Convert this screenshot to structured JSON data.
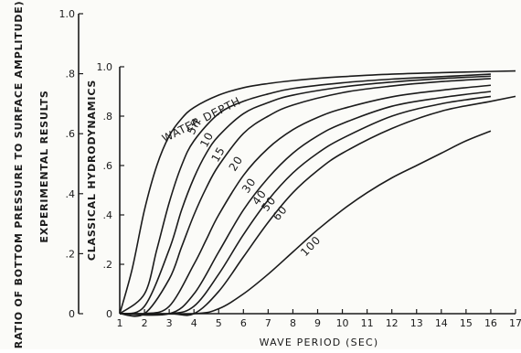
{
  "chart_data": {
    "type": "line",
    "title": "",
    "xlabel": "WAVE PERIOD (SEC)",
    "ylabel": "(RATIO OF BOTTOM PRESSURE TO SURFACE AMPLITUDE) P/A",
    "ylabel_outer_2": "EXPERIMENTAL RESULTS",
    "ylabel_inner": "CLASSICAL HYDRODYNAMICS",
    "xlim": [
      1,
      17
    ],
    "ylim": [
      0,
      1.0
    ],
    "x_ticks": [
      "1",
      "2",
      "3",
      "4",
      "5",
      "6",
      "7",
      "8",
      "9",
      "10",
      "11",
      "12",
      "13",
      "14",
      "15",
      "16",
      "17"
    ],
    "y_ticks_inner": [
      "0",
      ".2",
      ".4",
      ".6",
      ".8",
      "1.0"
    ],
    "y_ticks_outer": [
      "0",
      ".2",
      ".4",
      ".6",
      ".8",
      "1.0"
    ],
    "legend_title": "WATER DEPTH",
    "grid": false,
    "series": [
      {
        "name": "5ft",
        "x": [
          1,
          1.5,
          2,
          2.5,
          3,
          3.5,
          4,
          5,
          6,
          7,
          8,
          9,
          10,
          12,
          14,
          16,
          17
        ],
        "y": [
          0.0,
          0.18,
          0.42,
          0.6,
          0.72,
          0.79,
          0.835,
          0.885,
          0.915,
          0.932,
          0.944,
          0.953,
          0.96,
          0.97,
          0.976,
          0.981,
          0.983
        ]
      },
      {
        "name": "10",
        "x": [
          1,
          2,
          2.5,
          3,
          3.5,
          4,
          5,
          6,
          7,
          8,
          10,
          12,
          14,
          16
        ],
        "y": [
          0.0,
          0.08,
          0.26,
          0.45,
          0.6,
          0.7,
          0.81,
          0.86,
          0.89,
          0.912,
          0.935,
          0.95,
          0.96,
          0.97
        ]
      },
      {
        "name": "15",
        "x": [
          1,
          2,
          3,
          3.5,
          4,
          4.5,
          5,
          6,
          7,
          8,
          10,
          12,
          14,
          16
        ],
        "y": [
          0.0,
          0.03,
          0.26,
          0.42,
          0.55,
          0.65,
          0.72,
          0.81,
          0.855,
          0.885,
          0.918,
          0.938,
          0.952,
          0.962
        ]
      },
      {
        "name": "20",
        "x": [
          1,
          2,
          3,
          3.5,
          4,
          4.5,
          5,
          6,
          7,
          8,
          10,
          12,
          14,
          16
        ],
        "y": [
          0.0,
          0.0,
          0.14,
          0.27,
          0.4,
          0.51,
          0.6,
          0.73,
          0.8,
          0.845,
          0.895,
          0.922,
          0.94,
          0.952
        ]
      },
      {
        "name": "30",
        "x": [
          1,
          2,
          3,
          4,
          4.5,
          5,
          6,
          7,
          8,
          9,
          10,
          12,
          14,
          16
        ],
        "y": [
          0.0,
          0.0,
          0.03,
          0.2,
          0.3,
          0.4,
          0.56,
          0.67,
          0.745,
          0.795,
          0.83,
          0.878,
          0.905,
          0.925
        ]
      },
      {
        "name": "40",
        "x": [
          1,
          3,
          4,
          5,
          6,
          7,
          8,
          9,
          10,
          12,
          14,
          16
        ],
        "y": [
          0.0,
          0.0,
          0.08,
          0.25,
          0.42,
          0.55,
          0.65,
          0.72,
          0.77,
          0.84,
          0.875,
          0.9
        ]
      },
      {
        "name": "50",
        "x": [
          1,
          3,
          4,
          5,
          6,
          7,
          8,
          9,
          10,
          12,
          14,
          16
        ],
        "y": [
          0.0,
          0.0,
          0.03,
          0.16,
          0.32,
          0.46,
          0.57,
          0.65,
          0.71,
          0.8,
          0.85,
          0.88
        ]
      },
      {
        "name": "60",
        "x": [
          1,
          3,
          4,
          5,
          6,
          7,
          8,
          9,
          10,
          12,
          14,
          16,
          17
        ],
        "y": [
          0.0,
          0.0,
          0.0,
          0.09,
          0.23,
          0.37,
          0.49,
          0.58,
          0.65,
          0.75,
          0.82,
          0.86,
          0.88
        ]
      },
      {
        "name": "100",
        "x": [
          1,
          4,
          5,
          6,
          7,
          8,
          9,
          10,
          11,
          12,
          13,
          14,
          15,
          16
        ],
        "y": [
          0.0,
          0.0,
          0.02,
          0.08,
          0.16,
          0.25,
          0.34,
          0.42,
          0.49,
          0.55,
          0.6,
          0.65,
          0.7,
          0.74
        ]
      }
    ]
  }
}
